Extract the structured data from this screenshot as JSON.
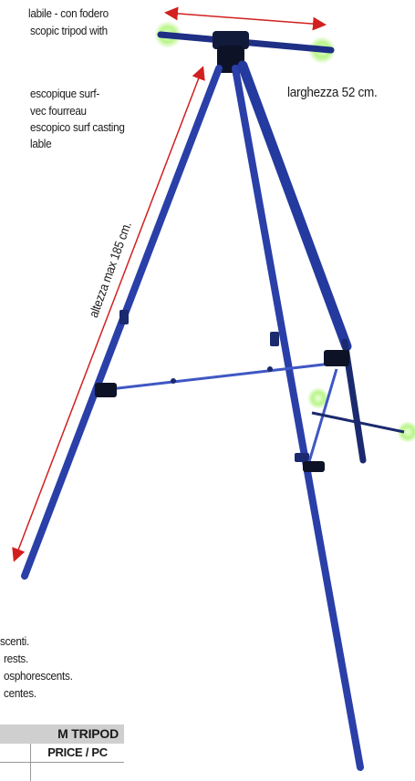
{
  "description_lines": [
    "labile - con fodero",
    "scopic tripod with",
    "escopique surf-",
    "vec fourreau",
    "escopico surf casting",
    "lable"
  ],
  "width_label": "larghezza 52 cm.",
  "height_label": "altezza max 185 cm.",
  "footer_lines": [
    "scenti.",
    "rests.",
    "osphorescents.",
    "centes."
  ],
  "table": {
    "title": "M TRIPOD",
    "column_header": "PRICE / PC"
  },
  "colors": {
    "tripod_blue": "#2a3fa8",
    "arrow_red": "#d21f1f",
    "rest_glow": "#b9f58a"
  }
}
